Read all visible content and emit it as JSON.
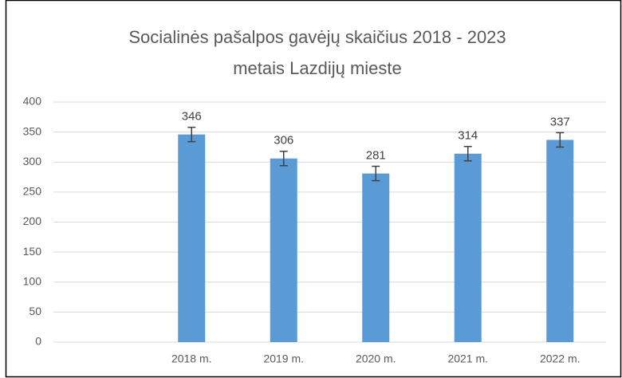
{
  "chart_data": {
    "type": "bar",
    "title": [
      "Socialinės pašalpos gavėjų skaičius 2018 - 2023",
      "metais Lazdijų mieste"
    ],
    "categories": [
      null,
      "2018 m.",
      "2019 m.",
      "2020 m.",
      "2021 m.",
      "2022 m."
    ],
    "values": [
      null,
      346,
      306,
      281,
      314,
      337
    ],
    "errors": [
      null,
      12,
      12,
      12,
      12,
      12
    ],
    "color": "#5b9bd5",
    "ylim": [
      0,
      400
    ],
    "yticks": [
      0,
      50,
      100,
      150,
      200,
      250,
      300,
      350,
      400
    ],
    "grid": true
  }
}
